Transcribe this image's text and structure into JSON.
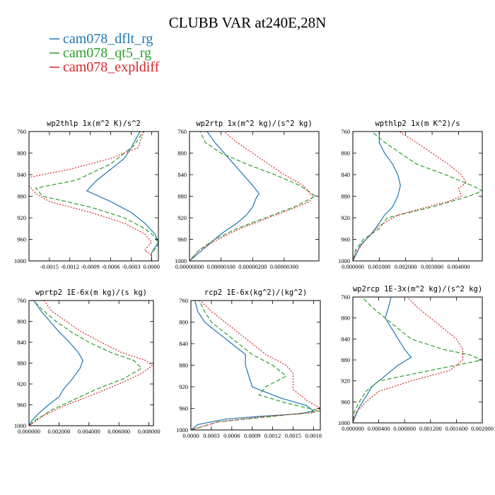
{
  "figure": {
    "title": "CLUBB VAR at240E,28N"
  },
  "legend": [
    {
      "name": "cam078_dflt_rg",
      "color": "#1f77b4"
    },
    {
      "name": "cam078_qt5_rg",
      "color": "#2ca02c"
    },
    {
      "name": "cam078_expldiff",
      "color": "#d62728"
    }
  ],
  "chart_data": [
    {
      "type": "line",
      "title": "wp2thlp  1x(m^2 K)/s^2",
      "ylim": [
        760,
        1000
      ],
      "yinvert": true,
      "yticks": [
        760,
        800,
        840,
        880,
        920,
        960,
        1000
      ],
      "xlim": [
        -0.0018,
        0.0001
      ],
      "xticks": [
        -0.0015,
        -0.0012,
        -0.0009,
        -0.0006,
        -0.0003,
        0.0
      ],
      "xticklabels": [
        "-0.0015",
        "-0.0012",
        "-0.0009",
        "-0.0006",
        "-0.0003",
        "0.0000"
      ],
      "series": [
        {
          "name": "cam078_dflt_rg",
          "color": "#1f77b4",
          "dash": "solid",
          "y": [
            755,
            790,
            810,
            830,
            850,
            870,
            890,
            910,
            930,
            950,
            965,
            975,
            985,
            1000
          ],
          "x": [
            -0.00015,
            -0.0003,
            -0.0004,
            -0.0006,
            -0.0008,
            -0.00095,
            -0.0006,
            -0.0003,
            -0.0001,
            5e-05,
            0.0001,
            5e-05,
            0.0,
            0.0
          ]
        },
        {
          "name": "cam078_qt5_rg",
          "color": "#2ca02c",
          "dash": "dash",
          "y": [
            755,
            785,
            820,
            850,
            865,
            880,
            900,
            920,
            940,
            955,
            970,
            985,
            1000
          ],
          "x": [
            -0.0001,
            -0.00025,
            -0.0006,
            -0.0011,
            -0.0017,
            -0.0016,
            -0.0009,
            -0.0004,
            -0.0001,
            5e-05,
            0.0001,
            0.0,
            0.0
          ]
        },
        {
          "name": "cam078_expldiff",
          "color": "#d62728",
          "dash": "dot",
          "y": [
            755,
            790,
            810,
            830,
            845,
            860,
            875,
            890,
            910,
            930,
            950,
            965,
            980,
            990,
            1000
          ],
          "x": [
            -0.0001,
            -0.0002,
            -0.0006,
            -0.0012,
            -0.0018,
            -0.0018,
            -0.0017,
            -0.0015,
            -0.0009,
            -0.0004,
            -0.0001,
            0.0,
            -0.0001,
            0.0,
            0.0
          ]
        }
      ]
    },
    {
      "type": "line",
      "title": "wp2rtp  1x(m^2 kg)/(s^2 kg)",
      "ylim": [
        760,
        1000
      ],
      "yinvert": true,
      "yticks": [
        760,
        800,
        840,
        880,
        920,
        960,
        1000
      ],
      "xlim": [
        0.0,
        4.1e-06
      ],
      "xticks": [
        0.0,
        1e-06,
        2e-06,
        3e-06
      ],
      "xticklabels": [
        "0.00000000",
        "0.00000100",
        "0.00000200",
        "0.00000300"
      ],
      "series": [
        {
          "name": "cam078_dflt_rg",
          "color": "#1f77b4",
          "dash": "solid",
          "y": [
            755,
            780,
            800,
            820,
            840,
            860,
            875,
            885,
            900,
            915,
            930,
            950,
            970,
            990,
            1000
          ],
          "x": [
            5e-07,
            8e-07,
            1.1e-06,
            1.4e-06,
            1.7e-06,
            2e-06,
            2.2e-06,
            2.1e-06,
            2e-06,
            1.8e-06,
            1.5e-06,
            1e-06,
            6e-07,
            2e-07,
            0.0
          ]
        },
        {
          "name": "cam078_qt5_rg",
          "color": "#2ca02c",
          "dash": "dash",
          "y": [
            755,
            780,
            800,
            820,
            840,
            860,
            880,
            900,
            920,
            940,
            960,
            980,
            1000
          ],
          "x": [
            3e-07,
            5e-07,
            1e-06,
            1.8e-06,
            2.7e-06,
            3.5e-06,
            4e-06,
            3.3e-06,
            2.4e-06,
            1.5e-06,
            8e-07,
            3e-07,
            0.0
          ]
        },
        {
          "name": "cam078_expldiff",
          "color": "#d62728",
          "dash": "dot",
          "y": [
            755,
            780,
            800,
            820,
            840,
            860,
            880,
            890,
            900,
            920,
            940,
            960,
            980,
            1000
          ],
          "x": [
            1e-06,
            1.5e-06,
            2e-06,
            2.5e-06,
            3e-06,
            3.6e-06,
            3.9e-06,
            3.8e-06,
            3.4e-06,
            2.5e-06,
            1.6e-06,
            9e-07,
            3e-07,
            0.0
          ]
        }
      ]
    },
    {
      "type": "line",
      "title": "wpthlp2  1x(m K^2)/s",
      "ylim": [
        760,
        1000
      ],
      "yinvert": true,
      "yticks": [
        760,
        800,
        840,
        880,
        920,
        960,
        1000
      ],
      "xlim": [
        0.0,
        0.0049
      ],
      "xticks": [
        0.0,
        0.001,
        0.002,
        0.003,
        0.004
      ],
      "xticklabels": [
        "0.000000",
        "0.001000",
        "0.002000",
        "0.003000",
        "0.004000"
      ],
      "series": [
        {
          "name": "cam078_dflt_rg",
          "color": "#1f77b4",
          "dash": "solid",
          "y": [
            755,
            780,
            800,
            820,
            840,
            860,
            880,
            900,
            915,
            930,
            950,
            970,
            990,
            1000
          ],
          "x": [
            0.001,
            0.001,
            0.0012,
            0.0015,
            0.0017,
            0.0018,
            0.0017,
            0.0015,
            0.0012,
            0.001,
            0.0007,
            0.0003,
            0.0001,
            0.0
          ]
        },
        {
          "name": "cam078_qt5_rg",
          "color": "#2ca02c",
          "dash": "dash",
          "y": [
            755,
            780,
            800,
            820,
            840,
            860,
            870,
            880,
            900,
            920,
            940,
            960,
            980,
            1000
          ],
          "x": [
            0.0006,
            0.0012,
            0.0018,
            0.0024,
            0.0035,
            0.0045,
            0.0049,
            0.0044,
            0.003,
            0.0013,
            0.001,
            0.0004,
            0.0001,
            0.0
          ]
        },
        {
          "name": "cam078_expldiff",
          "color": "#d62728",
          "dash": "dot",
          "y": [
            755,
            780,
            800,
            820,
            840,
            855,
            865,
            880,
            890,
            900,
            915,
            935,
            960,
            985,
            1000
          ],
          "x": [
            0.0016,
            0.0024,
            0.003,
            0.0036,
            0.0041,
            0.0043,
            0.004,
            0.0041,
            0.0036,
            0.0028,
            0.0017,
            0.001,
            0.0005,
            0.0001,
            0.0
          ]
        }
      ]
    },
    {
      "type": "line",
      "title": "wprtp2  1E-6x(m kg)/(s kg)",
      "ylim": [
        760,
        1000
      ],
      "yinvert": true,
      "yticks": [
        760,
        800,
        840,
        880,
        920,
        960,
        1000
      ],
      "xlim": [
        0.0,
        0.0083
      ],
      "xticks": [
        0.0,
        0.002,
        0.004,
        0.006,
        0.008
      ],
      "xticklabels": [
        "0.000000",
        "0.002000",
        "0.004000",
        "0.006000",
        "0.008000"
      ],
      "series": [
        {
          "name": "cam078_dflt_rg",
          "color": "#1f77b4",
          "dash": "solid",
          "y": [
            755,
            780,
            800,
            820,
            840,
            860,
            875,
            890,
            910,
            930,
            945,
            960,
            975,
            990,
            1000
          ],
          "x": [
            0.0002,
            0.0008,
            0.0014,
            0.002,
            0.0027,
            0.0033,
            0.0036,
            0.0034,
            0.0029,
            0.0023,
            0.002,
            0.0013,
            0.0007,
            0.0002,
            0.0
          ]
        },
        {
          "name": "cam078_qt5_rg",
          "color": "#2ca02c",
          "dash": "dash",
          "y": [
            755,
            780,
            800,
            820,
            840,
            860,
            875,
            890,
            910,
            930,
            950,
            970,
            990,
            1000
          ],
          "x": [
            0.0001,
            0.001,
            0.0018,
            0.0028,
            0.004,
            0.0055,
            0.007,
            0.0075,
            0.0063,
            0.0045,
            0.003,
            0.0015,
            0.0004,
            0.0
          ]
        },
        {
          "name": "cam078_expldiff",
          "color": "#d62728",
          "dash": "dot",
          "y": [
            755,
            780,
            800,
            820,
            840,
            860,
            875,
            885,
            900,
            920,
            940,
            960,
            980,
            1000
          ],
          "x": [
            0.0009,
            0.0015,
            0.0025,
            0.0035,
            0.0048,
            0.0062,
            0.0078,
            0.0082,
            0.0075,
            0.006,
            0.0043,
            0.0025,
            0.001,
            0.0
          ]
        }
      ]
    },
    {
      "type": "line",
      "title": "rcp2  1E-6x(kg^2)/(kg^2)",
      "ylim": [
        760,
        1000
      ],
      "yinvert": true,
      "yticks": [
        760,
        800,
        840,
        880,
        920,
        960,
        1000
      ],
      "xlim": [
        0.0,
        0.0019
      ],
      "xticks": [
        0.0,
        0.0003,
        0.0006,
        0.0009,
        0.0012,
        0.0015,
        0.0018
      ],
      "xticklabels": [
        "0.0000",
        "0.0003",
        "0.0006",
        "0.0009",
        "0.0012",
        "0.0015",
        "0.0018"
      ],
      "series": [
        {
          "name": "cam078_dflt_rg",
          "color": "#1f77b4",
          "dash": "solid",
          "y": [
            755,
            780,
            800,
            820,
            840,
            860,
            880,
            900,
            920,
            940,
            955,
            965,
            970,
            975,
            980,
            990,
            1000
          ],
          "x": [
            5e-05,
            0.0001,
            0.0002,
            0.0004,
            0.0006,
            0.0008,
            0.0008,
            0.00085,
            0.0009,
            0.0013,
            0.0017,
            0.0018,
            0.0016,
            0.001,
            0.0005,
            0.0001,
            0.0
          ]
        },
        {
          "name": "cam078_qt5_rg",
          "color": "#2ca02c",
          "dash": "dash",
          "y": [
            755,
            780,
            800,
            820,
            840,
            860,
            880,
            900,
            920,
            935,
            950,
            965,
            975,
            985,
            1000
          ],
          "x": [
            0.0001,
            0.0002,
            0.0003,
            0.0005,
            0.0007,
            0.0009,
            0.0012,
            0.0014,
            0.0011,
            0.001,
            0.0014,
            0.0019,
            0.0012,
            0.0004,
            0.0
          ]
        },
        {
          "name": "cam078_expldiff",
          "color": "#d62728",
          "dash": "dot",
          "y": [
            755,
            780,
            800,
            820,
            840,
            860,
            880,
            895,
            910,
            925,
            945,
            960,
            968,
            975,
            985,
            1000
          ],
          "x": [
            0.0001,
            0.0003,
            0.0005,
            0.0007,
            0.0009,
            0.0011,
            0.0014,
            0.0015,
            0.0015,
            0.0015,
            0.0017,
            0.0019,
            0.0018,
            0.0011,
            0.0004,
            0.0
          ]
        }
      ]
    },
    {
      "type": "line",
      "title": "wp2rcp  1E-3x(m^2 kg)/(s^2 kg)",
      "ylim": [
        760,
        1000
      ],
      "yinvert": true,
      "yticks": [
        760,
        800,
        840,
        880,
        920,
        960,
        1000
      ],
      "xlim": [
        0.0,
        0.002
      ],
      "xticks": [
        0.0,
        0.0004,
        0.0008,
        0.0012,
        0.0016,
        0.002
      ],
      "xticklabels": [
        "0.000000",
        "0.000400",
        "0.000800",
        "0.001200",
        "0.001600",
        "0.002000"
      ],
      "series": [
        {
          "name": "cam078_dflt_rg",
          "color": "#1f77b4",
          "dash": "solid",
          "y": [
            755,
            780,
            800,
            820,
            840,
            860,
            875,
            890,
            910,
            930,
            950,
            970,
            990,
            1000
          ],
          "x": [
            0.0006,
            0.00055,
            0.0005,
            0.0006,
            0.0007,
            0.0008,
            0.0009,
            0.0007,
            0.0005,
            0.0003,
            0.0002,
            0.0001,
            3e-05,
            0.0
          ]
        },
        {
          "name": "cam078_qt5_rg",
          "color": "#2ca02c",
          "dash": "dash",
          "y": [
            755,
            780,
            800,
            820,
            840,
            860,
            870,
            880,
            900,
            920,
            940,
            960,
            980,
            1000
          ],
          "x": [
            0.0001,
            0.0003,
            0.0005,
            0.0007,
            0.0009,
            0.0014,
            0.0018,
            0.002,
            0.0012,
            0.0004,
            0.0002,
            0.0001,
            2e-05,
            0.0
          ]
        },
        {
          "name": "cam078_expldiff",
          "color": "#d62728",
          "dash": "dot",
          "y": [
            755,
            780,
            800,
            820,
            840,
            860,
            880,
            900,
            920,
            940,
            960,
            980,
            1000
          ],
          "x": [
            0.0008,
            0.001,
            0.0012,
            0.0014,
            0.0016,
            0.0017,
            0.0017,
            0.0015,
            0.0009,
            0.0004,
            0.0002,
            5e-05,
            0.0
          ]
        }
      ]
    }
  ]
}
